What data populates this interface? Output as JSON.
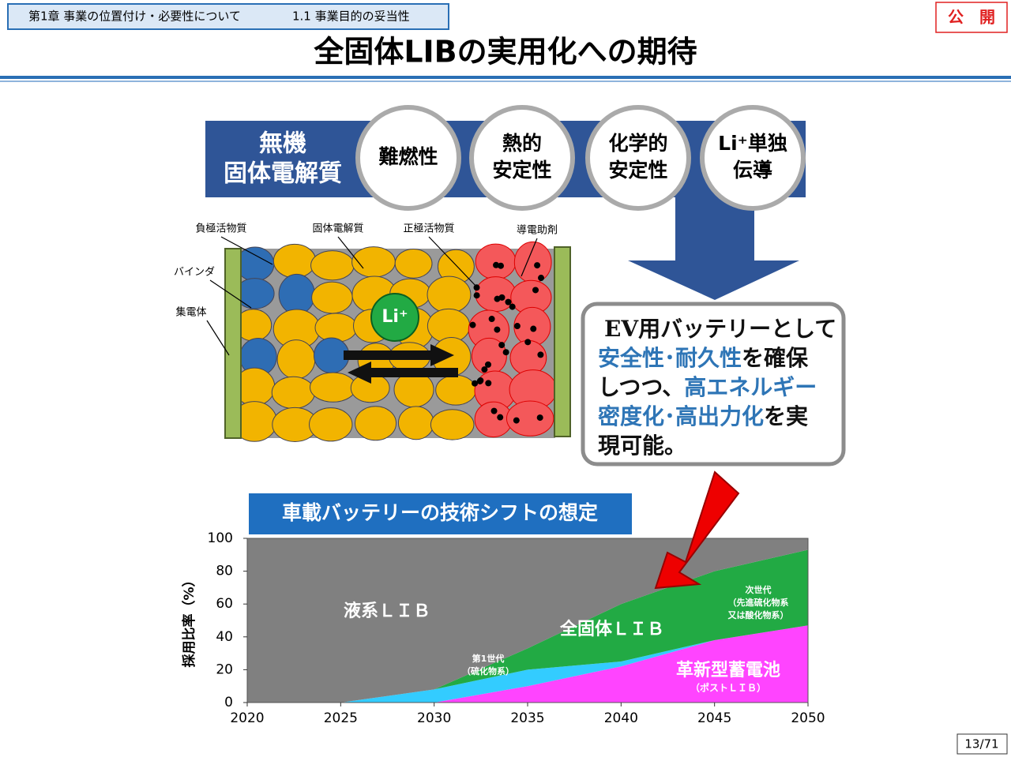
{
  "header": {
    "chapter": "第1章  事業の位置付け・必要性について",
    "section": "1.1 事業目的の妥当性",
    "badge": "公　開",
    "title": "全固体LIBの実用化への期待"
  },
  "banner": {
    "label": [
      "無機",
      "固体電解質"
    ],
    "properties": [
      [
        "難燃性"
      ],
      [
        "熱的",
        "安定性"
      ],
      [
        "化学的",
        "安定性"
      ],
      [
        "Li⁺単独",
        "伝導"
      ]
    ]
  },
  "diagram": {
    "labels": {
      "anode": "負極活物質",
      "electrolyte": "固体電解質",
      "cathode": "正極活物質",
      "conductive": "導電助剤",
      "binder": "バインダ",
      "collector": "集電体"
    },
    "ion": "Li⁺"
  },
  "callout": {
    "lines": [
      [
        {
          "text": "EV用バッテリーとして",
          "highlight": false
        }
      ],
      [
        {
          "text": "安全性･耐久性",
          "highlight": true
        },
        {
          "text": "を確保",
          "highlight": false
        }
      ],
      [
        {
          "text": "しつつ、",
          "highlight": false
        },
        {
          "text": "高エネルギー",
          "highlight": true
        }
      ],
      [
        {
          "text": "密度化･高出力化",
          "highlight": true
        },
        {
          "text": "を実",
          "highlight": false
        }
      ],
      [
        {
          "text": "現可能。",
          "highlight": false
        }
      ]
    ]
  },
  "chart_data": {
    "type": "area",
    "stacked": true,
    "title": "車載バッテリーの技術シフトの想定",
    "y_label": "採用比率（%）",
    "x": [
      2020,
      2025,
      2030,
      2035,
      2040,
      2045,
      2050
    ],
    "xlim": [
      2020,
      2050
    ],
    "xticks": [
      2020,
      2025,
      2030,
      2035,
      2040,
      2045,
      2050
    ],
    "ylim": [
      0,
      100
    ],
    "yticks": [
      0,
      20,
      40,
      60,
      80,
      100
    ],
    "series": [
      {
        "name": "革新型蓄電池",
        "sublabels": [
          "（ポストＬＩＢ）"
        ],
        "color": "#ff44ff",
        "values": [
          0,
          0,
          0,
          10,
          22,
          38,
          47
        ]
      },
      {
        "name": "第1世代",
        "sublabels": [
          "（硫化物系）"
        ],
        "color": "#33ccff",
        "values": [
          0,
          0,
          8,
          10,
          3,
          0,
          0
        ]
      },
      {
        "name": "次世代",
        "sublabels": [
          "（先進硫化物系",
          "又は酸化物系）"
        ],
        "color": "#22aa44",
        "values": [
          0,
          0,
          0,
          13,
          35,
          42,
          46
        ]
      },
      {
        "name": "液系ＬＩＢ",
        "sublabels": [],
        "color": "#808080",
        "values": [
          100,
          100,
          92,
          67,
          40,
          20,
          7
        ]
      }
    ],
    "annotations": [
      {
        "text": "全固体ＬＩＢ"
      }
    ]
  },
  "footer": {
    "page": "13/71"
  }
}
